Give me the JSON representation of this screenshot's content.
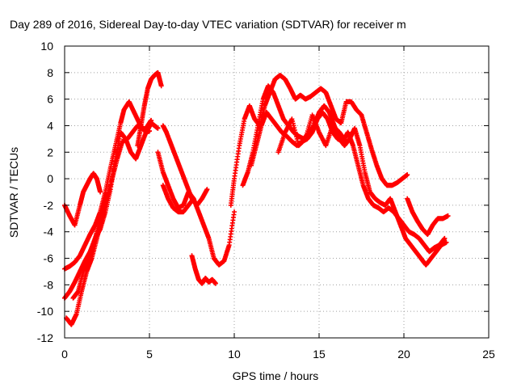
{
  "chart_data": {
    "type": "scatter",
    "title": "Day 289 of 2016, Sidereal Day-to-day VTEC variation (SDTVAR) for receiver m",
    "xlabel": "GPS time / hours",
    "ylabel": "SDTVAR / TECUs",
    "xlim": [
      0,
      25
    ],
    "ylim": [
      -12,
      10
    ],
    "xticks": [
      0,
      5,
      10,
      15,
      20,
      25
    ],
    "yticks": [
      -12,
      -10,
      -8,
      -6,
      -4,
      -2,
      0,
      2,
      4,
      6,
      8,
      10
    ],
    "grid": true,
    "legend": "none",
    "marker": "plus",
    "color": "#ff0000",
    "series": [
      {
        "x": [
          0.0,
          0.3,
          0.6,
          0.9,
          1.2,
          1.5,
          1.8,
          2.1,
          2.4,
          2.7,
          3.0,
          3.3,
          3.5,
          3.8,
          4.1,
          4.4,
          4.7,
          4.9,
          5.1
        ],
        "y": [
          -6.8,
          -6.6,
          -6.3,
          -5.8,
          -5.0,
          -4.2,
          -3.5,
          -2.5,
          -1.0,
          0.8,
          2.5,
          4.2,
          5.2,
          5.8,
          5.0,
          4.2,
          3.6,
          4.0,
          4.4
        ]
      },
      {
        "x": [
          0.0,
          0.3,
          0.6,
          0.9,
          1.2,
          1.5,
          1.8,
          2.1,
          2.4,
          2.7,
          3.0,
          3.3,
          3.6,
          3.9,
          4.2,
          4.5,
          4.8,
          5.0
        ],
        "y": [
          -9.0,
          -8.5,
          -7.8,
          -7.0,
          -6.2,
          -5.5,
          -4.5,
          -3.8,
          -2.5,
          -0.8,
          1.5,
          3.5,
          3.0,
          2.0,
          1.5,
          2.5,
          3.5,
          3.6
        ]
      },
      {
        "x": [
          0.0,
          0.3,
          0.6,
          0.9,
          1.1,
          1.3,
          1.5,
          1.7,
          1.9,
          2.1
        ],
        "y": [
          -2.0,
          -2.8,
          -3.5,
          -2.0,
          -1.0,
          -0.5,
          0.0,
          0.4,
          0.0,
          -1.0
        ]
      },
      {
        "x": [
          0.1,
          0.4,
          0.7,
          1.0,
          1.3,
          1.6,
          1.9,
          2.2,
          2.5,
          2.8,
          3.1,
          3.4,
          3.7,
          4.0,
          4.3,
          4.6,
          4.9,
          5.1,
          5.3,
          5.5
        ],
        "y": [
          -10.5,
          -11.0,
          -10.2,
          -8.5,
          -7.0,
          -6.0,
          -4.5,
          -3.0,
          -1.5,
          0.0,
          1.5,
          2.8,
          3.0,
          3.5,
          4.0,
          3.8,
          3.7,
          4.2,
          4.0,
          3.8
        ]
      },
      {
        "x": [
          0.5,
          0.8,
          1.1,
          1.4,
          1.7,
          2.0,
          2.3,
          2.6
        ],
        "y": [
          -9.0,
          -8.5,
          -7.0,
          -6.0,
          -5.0,
          -3.5,
          -2.0,
          -1.0
        ]
      },
      {
        "x": [
          4.3,
          4.5,
          4.7,
          4.9,
          5.1,
          5.3,
          5.5,
          5.7
        ],
        "y": [
          2.5,
          4.0,
          5.5,
          6.8,
          7.5,
          7.8,
          8.0,
          7.0
        ]
      },
      {
        "x": [
          5.8,
          6.0,
          6.3,
          6.6,
          6.9,
          7.2,
          7.5,
          7.8,
          8.1,
          8.4
        ],
        "y": [
          4.0,
          3.5,
          2.5,
          1.5,
          0.5,
          -0.5,
          -1.5,
          -2.0,
          -1.5,
          -0.8
        ]
      },
      {
        "x": [
          5.5,
          5.8,
          6.1,
          6.4,
          6.7,
          7.0,
          7.3,
          7.6,
          7.9,
          8.2,
          8.5,
          8.8,
          9.1,
          9.4,
          9.7,
          10.0
        ],
        "y": [
          2.0,
          0.5,
          -0.5,
          -1.5,
          -2.2,
          -2.0,
          -1.0,
          -1.5,
          -2.5,
          -3.5,
          -4.5,
          -6.0,
          -6.5,
          -6.2,
          -5.0,
          -2.5
        ]
      },
      {
        "x": [
          5.8,
          6.1,
          6.4,
          6.7,
          7.0,
          7.3,
          7.6
        ],
        "y": [
          -0.5,
          -1.5,
          -2.2,
          -2.5,
          -2.5,
          -2.0,
          -1.5
        ]
      },
      {
        "x": [
          7.5,
          7.7,
          7.9,
          8.1,
          8.3,
          8.5,
          8.7,
          8.9
        ],
        "y": [
          -5.8,
          -6.8,
          -7.6,
          -7.9,
          -7.5,
          -7.8,
          -7.6,
          -7.9
        ]
      },
      {
        "x": [
          9.8,
          10.0,
          10.3,
          10.6,
          10.9,
          11.2,
          11.5,
          11.8,
          12.1,
          12.4,
          12.7,
          13.0,
          13.3,
          13.6,
          13.9,
          14.2,
          14.5,
          14.8,
          15.1,
          15.4,
          15.7,
          16.0,
          16.3,
          16.6,
          16.9,
          17.2,
          17.5,
          17.8,
          18.1,
          18.4,
          18.7,
          19.0,
          19.3,
          19.6,
          19.9,
          20.2
        ],
        "y": [
          -2.0,
          0.0,
          2.5,
          4.5,
          5.5,
          4.5,
          4.0,
          5.5,
          6.5,
          7.5,
          7.8,
          7.5,
          6.8,
          6.0,
          6.3,
          6.0,
          6.2,
          6.5,
          6.8,
          6.5,
          5.5,
          4.5,
          4.2,
          5.8,
          5.8,
          5.2,
          4.8,
          3.5,
          2.2,
          1.0,
          0.0,
          -0.5,
          -0.5,
          -0.3,
          0.0,
          0.3
        ]
      },
      {
        "x": [
          10.5,
          10.8,
          11.1,
          11.4,
          11.7,
          12.0,
          12.3,
          12.6,
          12.9,
          13.2,
          13.5,
          13.8,
          14.1,
          14.4,
          14.7,
          15.0,
          15.3,
          15.6,
          15.9,
          16.2,
          16.5,
          16.8,
          17.1,
          17.4,
          17.7,
          18.0,
          18.3,
          18.6,
          18.9,
          19.2,
          19.5,
          19.8,
          20.1,
          20.4,
          20.7,
          21.0,
          21.3,
          21.6,
          21.9,
          22.2,
          22.5
        ],
        "y": [
          -0.5,
          0.5,
          2.0,
          4.0,
          6.0,
          7.0,
          6.5,
          5.5,
          4.5,
          4.0,
          3.5,
          3.2,
          3.0,
          3.5,
          4.0,
          5.0,
          5.5,
          5.0,
          4.0,
          3.0,
          2.5,
          3.0,
          3.8,
          2.5,
          0.5,
          -1.0,
          -1.5,
          -1.8,
          -2.0,
          -1.5,
          -2.5,
          -3.5,
          -4.5,
          -5.0,
          -5.5,
          -6.0,
          -6.5,
          -6.0,
          -5.5,
          -5.0,
          -4.8
        ]
      },
      {
        "x": [
          11.0,
          11.3,
          11.6,
          11.9,
          12.2,
          12.5,
          12.8,
          13.1,
          13.4,
          13.7,
          14.0,
          14.3,
          14.6,
          14.9,
          15.2,
          15.5,
          15.8,
          16.1,
          16.4,
          16.7,
          17.0,
          17.3,
          17.6,
          17.9,
          18.2,
          18.5,
          18.8,
          19.1,
          19.4,
          19.7,
          20.0,
          20.3,
          20.6,
          20.9,
          21.2,
          21.5,
          21.8,
          22.1,
          22.4
        ],
        "y": [
          1.0,
          2.5,
          4.0,
          5.0,
          4.5,
          4.0,
          3.5,
          3.2,
          2.8,
          2.5,
          2.8,
          3.0,
          3.5,
          4.5,
          5.0,
          4.5,
          3.5,
          3.0,
          2.8,
          3.5,
          2.5,
          1.0,
          -0.5,
          -1.5,
          -2.0,
          -2.2,
          -2.5,
          -2.2,
          -2.5,
          -3.0,
          -3.5,
          -4.0,
          -4.2,
          -4.5,
          -5.0,
          -5.5,
          -5.2,
          -5.0,
          -4.5
        ]
      },
      {
        "x": [
          20.2,
          20.5,
          20.8,
          21.1,
          21.4,
          21.7,
          22.0,
          22.3,
          22.6
        ],
        "y": [
          -1.5,
          -2.5,
          -3.2,
          -3.8,
          -4.2,
          -3.5,
          -3.0,
          -3.0,
          -2.8
        ]
      },
      {
        "x": [
          12.6,
          13.0,
          13.4,
          13.8,
          14.2,
          14.6,
          15.0,
          15.4,
          15.8,
          16.2,
          16.6
        ],
        "y": [
          2.0,
          3.5,
          4.5,
          2.5,
          3.0,
          4.8,
          3.5,
          2.5,
          4.0,
          3.5,
          2.8
        ]
      }
    ]
  }
}
